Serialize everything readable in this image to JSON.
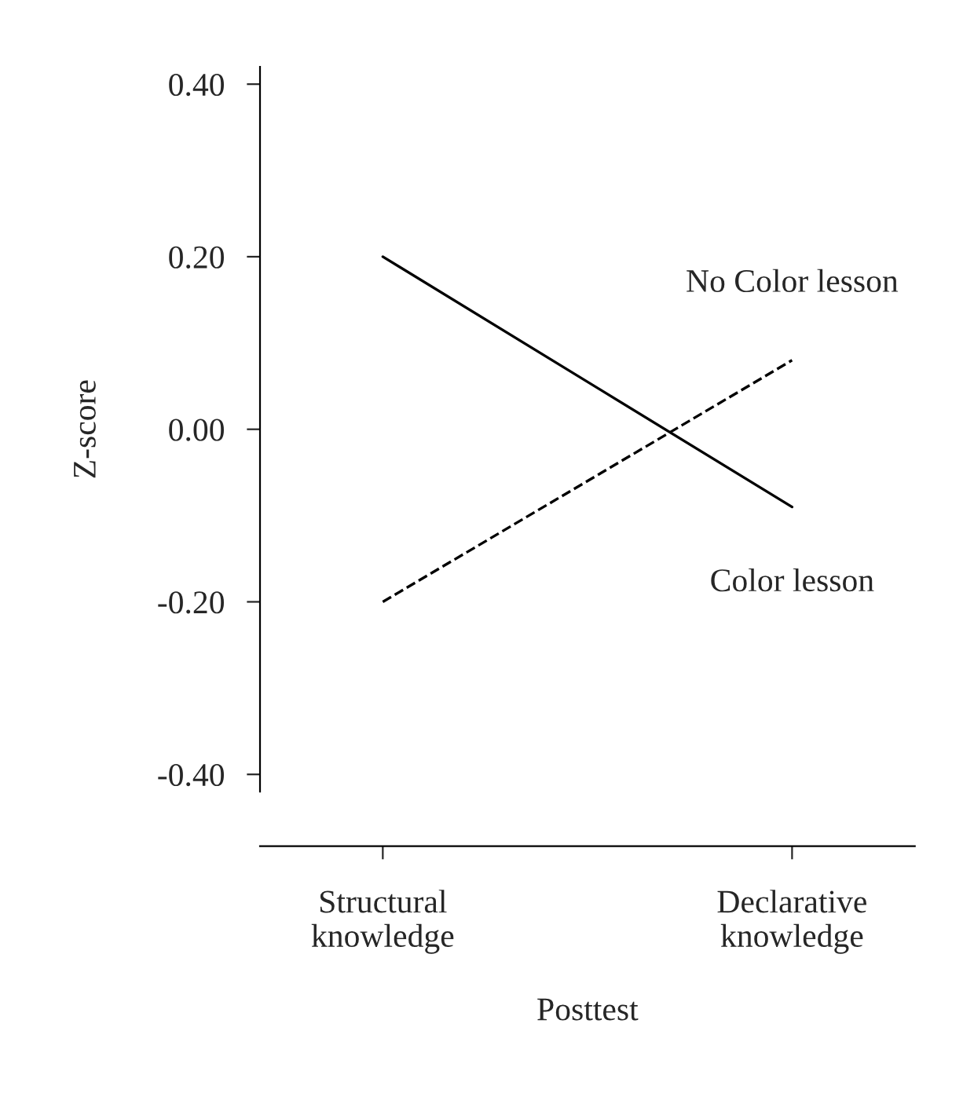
{
  "chart_data": {
    "type": "line",
    "xlabel": "Posttest",
    "ylabel": "Z-score",
    "categories": [
      "Structural\nknowledge",
      "Declarative\nknowledge"
    ],
    "series": [
      {
        "name": "Color lesson",
        "color": "#000000",
        "line_style": "solid",
        "values": [
          0.2,
          -0.09
        ]
      },
      {
        "name": "No Color lesson",
        "color": "#000000",
        "line_style": "dashed",
        "values": [
          -0.2,
          0.08
        ]
      }
    ],
    "ylim": [
      -0.42,
      0.42
    ],
    "yticks": [
      {
        "value": -0.4,
        "label": "-0.40"
      },
      {
        "value": -0.2,
        "label": "-0.20"
      },
      {
        "value": 0,
        "label": "0.00"
      },
      {
        "value": 0.2,
        "label": "0.20"
      },
      {
        "value": 0.4,
        "label": "0.40"
      }
    ],
    "grid": false,
    "legend": false,
    "marker": "none"
  }
}
